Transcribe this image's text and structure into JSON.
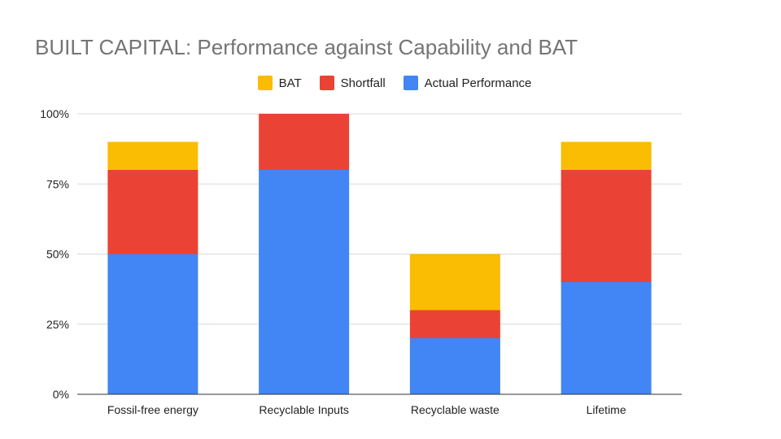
{
  "chart_data": {
    "type": "bar",
    "stacked": true,
    "title": "BUILT CAPITAL: Performance against Capability and BAT",
    "categories": [
      "Fossil-free energy",
      "Recyclable Inputs",
      "Recyclable waste",
      "Lifetime"
    ],
    "series": [
      {
        "name": "Actual Performance",
        "color": "#4285f4",
        "values": [
          50,
          80,
          20,
          40
        ]
      },
      {
        "name": "Shortfall",
        "color": "#ea4335",
        "values": [
          30,
          20,
          10,
          40
        ]
      },
      {
        "name": "BAT",
        "color": "#fbbc04",
        "values": [
          10,
          0,
          20,
          10
        ]
      }
    ],
    "legend_order": [
      "BAT",
      "Shortfall",
      "Actual Performance"
    ],
    "legend_position": "top",
    "ylim": [
      0,
      100
    ],
    "yticks": [
      "0%",
      "25%",
      "50%",
      "75%",
      "100%"
    ],
    "grid": true,
    "xlabel": "",
    "ylabel": ""
  }
}
